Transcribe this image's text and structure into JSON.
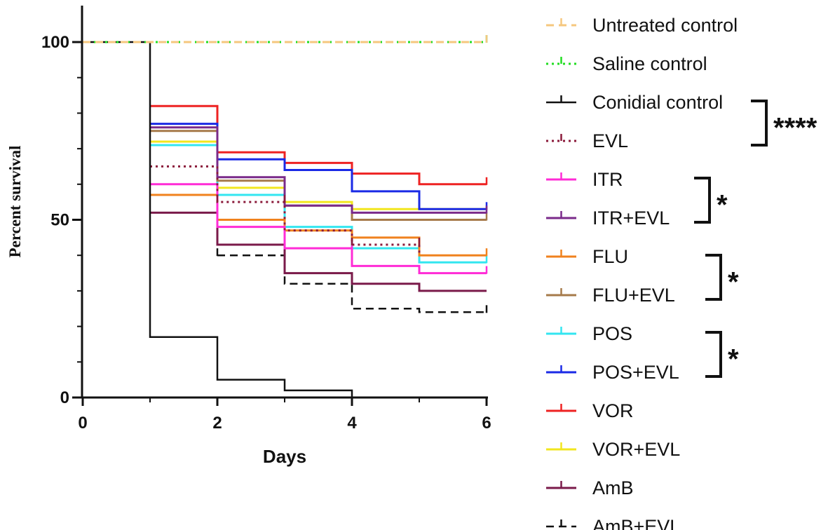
{
  "chart_data": {
    "type": "line",
    "subtype": "kaplan-meier survival (step)",
    "title": "",
    "xlabel": "Days",
    "ylabel": "Percent survival",
    "xlim": [
      0,
      6
    ],
    "ylim": [
      0,
      100
    ],
    "x_ticks": [
      0,
      2,
      4,
      6
    ],
    "y_ticks": [
      0,
      50,
      100
    ],
    "x_tick_labels": [
      "0",
      "2",
      "4",
      "6"
    ],
    "y_tick_labels": [
      "0",
      "50",
      "100"
    ],
    "legend_position": "right",
    "series": [
      {
        "name": "Untreated control",
        "color": "#F5C77E",
        "dash": "dashed",
        "width": 3,
        "points": [
          [
            0,
            100
          ],
          [
            6,
            100
          ]
        ],
        "censor": [
          [
            6,
            100
          ]
        ]
      },
      {
        "name": "Saline control",
        "color": "#22DD22",
        "dash": "dotted",
        "width": 3,
        "points": [
          [
            0,
            100
          ],
          [
            6,
            100
          ]
        ],
        "censor": [
          [
            6,
            100
          ]
        ]
      },
      {
        "name": "Conidial control",
        "color": "#111111",
        "dash": "solid",
        "width": 2.5,
        "points": [
          [
            0,
            100
          ],
          [
            1,
            100
          ],
          [
            1,
            17
          ],
          [
            2,
            17
          ],
          [
            2,
            5
          ],
          [
            3,
            5
          ],
          [
            3,
            2
          ],
          [
            4,
            2
          ],
          [
            4,
            0
          ]
        ],
        "censor": []
      },
      {
        "name": "EVL",
        "color": "#8B1A3A",
        "dash": "dotted",
        "width": 3,
        "points": [
          [
            1,
            65
          ],
          [
            2,
            65
          ],
          [
            2,
            55
          ],
          [
            3,
            55
          ],
          [
            3,
            47
          ],
          [
            4,
            47
          ],
          [
            4,
            43
          ],
          [
            5,
            43
          ],
          [
            5,
            40
          ]
        ],
        "censor": [
          [
            2,
            55
          ],
          [
            3,
            55
          ],
          [
            4,
            43
          ],
          [
            5,
            43
          ]
        ]
      },
      {
        "name": "ITR",
        "color": "#FF2BD6",
        "dash": "solid",
        "width": 3,
        "points": [
          [
            1,
            60
          ],
          [
            2,
            60
          ],
          [
            2,
            48
          ],
          [
            3,
            48
          ],
          [
            3,
            42
          ],
          [
            4,
            42
          ],
          [
            4,
            37
          ],
          [
            5,
            37
          ],
          [
            5,
            35
          ],
          [
            6,
            35
          ]
        ],
        "censor": [
          [
            4,
            42
          ],
          [
            6,
            35
          ]
        ]
      },
      {
        "name": "ITR+EVL",
        "color": "#7A2A8A",
        "dash": "solid",
        "width": 3,
        "points": [
          [
            1,
            76
          ],
          [
            2,
            76
          ],
          [
            2,
            62
          ],
          [
            3,
            62
          ],
          [
            3,
            54
          ],
          [
            4,
            54
          ],
          [
            4,
            52
          ],
          [
            6,
            52
          ]
        ],
        "censor": [
          [
            2,
            62
          ],
          [
            4,
            52
          ],
          [
            6,
            52
          ]
        ]
      },
      {
        "name": "FLU",
        "color": "#F0821E",
        "dash": "solid",
        "width": 3,
        "points": [
          [
            1,
            57
          ],
          [
            2,
            57
          ],
          [
            2,
            50
          ],
          [
            3,
            50
          ],
          [
            3,
            47
          ],
          [
            4,
            47
          ],
          [
            4,
            45
          ],
          [
            5,
            45
          ],
          [
            5,
            40
          ],
          [
            6,
            40
          ]
        ],
        "censor": [
          [
            3,
            47
          ],
          [
            6,
            40
          ]
        ]
      },
      {
        "name": "FLU+EVL",
        "color": "#A67A4A",
        "dash": "solid",
        "width": 3,
        "points": [
          [
            1,
            75
          ],
          [
            2,
            75
          ],
          [
            2,
            61
          ],
          [
            3,
            61
          ],
          [
            3,
            54
          ],
          [
            4,
            54
          ],
          [
            4,
            50
          ],
          [
            6,
            50
          ]
        ],
        "censor": [
          [
            2,
            61
          ],
          [
            6,
            50
          ]
        ]
      },
      {
        "name": "POS",
        "color": "#33E6F0",
        "dash": "solid",
        "width": 3,
        "points": [
          [
            1,
            71
          ],
          [
            2,
            71
          ],
          [
            2,
            57
          ],
          [
            3,
            57
          ],
          [
            3,
            48
          ],
          [
            4,
            48
          ],
          [
            4,
            42
          ],
          [
            5,
            42
          ],
          [
            5,
            38
          ],
          [
            6,
            38
          ]
        ],
        "censor": [
          [
            3,
            48
          ],
          [
            6,
            38
          ]
        ]
      },
      {
        "name": "POS+EVL",
        "color": "#1A2AE6",
        "dash": "solid",
        "width": 3,
        "points": [
          [
            1,
            77
          ],
          [
            2,
            77
          ],
          [
            2,
            67
          ],
          [
            3,
            67
          ],
          [
            3,
            64
          ],
          [
            4,
            64
          ],
          [
            4,
            58
          ],
          [
            5,
            58
          ],
          [
            5,
            53
          ],
          [
            6,
            53
          ]
        ],
        "censor": [
          [
            2,
            67
          ],
          [
            6,
            53
          ]
        ]
      },
      {
        "name": "VOR",
        "color": "#EE2222",
        "dash": "solid",
        "width": 3,
        "points": [
          [
            1,
            82
          ],
          [
            2,
            82
          ],
          [
            2,
            69
          ],
          [
            3,
            69
          ],
          [
            3,
            66
          ],
          [
            4,
            66
          ],
          [
            4,
            63
          ],
          [
            5,
            63
          ],
          [
            5,
            60
          ],
          [
            6,
            60
          ]
        ],
        "censor": [
          [
            6,
            60
          ]
        ]
      },
      {
        "name": "VOR+EVL",
        "color": "#F2E61E",
        "dash": "solid",
        "width": 3,
        "points": [
          [
            1,
            72
          ],
          [
            2,
            72
          ],
          [
            2,
            59
          ],
          [
            3,
            59
          ],
          [
            3,
            55
          ],
          [
            4,
            55
          ],
          [
            4,
            53
          ],
          [
            6,
            53
          ]
        ],
        "censor": [
          [
            2,
            59
          ]
        ]
      },
      {
        "name": "AmB",
        "color": "#7A1A4A",
        "dash": "solid",
        "width": 3,
        "points": [
          [
            1,
            52
          ],
          [
            2,
            52
          ],
          [
            2,
            43
          ],
          [
            3,
            43
          ],
          [
            3,
            35
          ],
          [
            4,
            35
          ],
          [
            4,
            32
          ],
          [
            5,
            32
          ],
          [
            5,
            30
          ],
          [
            6,
            30
          ]
        ],
        "censor": [
          [
            3,
            35
          ]
        ]
      },
      {
        "name": "AmB+EVL",
        "color": "#111111",
        "dash": "dashed",
        "width": 2.5,
        "points": [
          [
            2,
            40
          ],
          [
            3,
            40
          ],
          [
            3,
            32
          ],
          [
            4,
            32
          ],
          [
            4,
            25
          ],
          [
            5,
            25
          ],
          [
            5,
            24
          ],
          [
            6,
            24
          ]
        ],
        "censor": [
          [
            2,
            40
          ],
          [
            6,
            24
          ]
        ]
      }
    ],
    "significance": [
      {
        "from": "Conidial control",
        "to": "EVL",
        "label": "****"
      },
      {
        "from": "ITR",
        "to": "ITR+EVL",
        "label": "*"
      },
      {
        "from": "FLU",
        "to": "FLU+EVL",
        "label": "*"
      },
      {
        "from": "POS",
        "to": "POS+EVL",
        "label": "*"
      }
    ]
  }
}
